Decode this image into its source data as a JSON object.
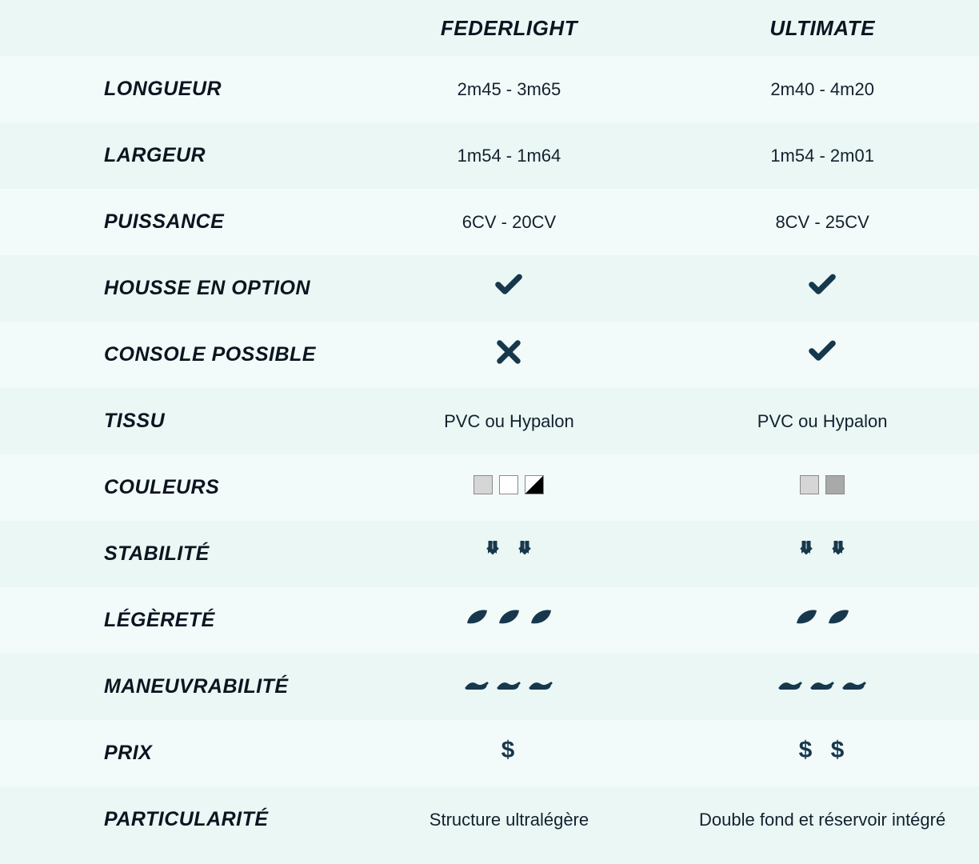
{
  "colors": {
    "bg_even": "#eaf7f5",
    "bg_odd": "#f3fbfa",
    "text_dark": "#0b1520",
    "icon_dark": "#17384c",
    "swatch_grey": "#d6d6d6",
    "swatch_white": "#ffffff",
    "swatch_darkgrey": "#a9a9a9",
    "swatch_border": "#8a8a8a"
  },
  "typography": {
    "label_fontsize": 25,
    "label_weight": 800,
    "label_style": "italic",
    "value_fontsize": 22,
    "header_fontsize": 26
  },
  "header": {
    "col1": "FEDERLIGHT",
    "col2": "ULTIMATE"
  },
  "rows": [
    {
      "key": "longueur",
      "label": "LONGUEUR",
      "type": "text",
      "col1": "2m45 - 3m65",
      "col2": "2m40 - 4m20"
    },
    {
      "key": "largeur",
      "label": "LARGEUR",
      "type": "text",
      "col1": "1m54 - 1m64",
      "col2": "1m54 - 2m01"
    },
    {
      "key": "puissance",
      "label": "PUISSANCE",
      "type": "text",
      "col1": "6CV - 20CV",
      "col2": "8CV - 25CV"
    },
    {
      "key": "housse",
      "label": "HOUSSE EN OPTION",
      "type": "bool",
      "col1": true,
      "col2": true
    },
    {
      "key": "console",
      "label": "CONSOLE POSSIBLE",
      "type": "bool",
      "col1": false,
      "col2": true
    },
    {
      "key": "tissu",
      "label": "TISSU",
      "type": "text",
      "col1": "PVC ou Hypalon",
      "col2": "PVC ou Hypalon"
    },
    {
      "key": "couleurs",
      "label": "COULEURS",
      "type": "swatches",
      "col1": [
        "grey",
        "white",
        "half"
      ],
      "col2": [
        "grey",
        "darkgrey"
      ]
    },
    {
      "key": "stabilite",
      "label": "STABILITÉ",
      "type": "rating",
      "icon": "anchor",
      "col1": 2,
      "col2": 2
    },
    {
      "key": "legerete",
      "label": "LÉGÈRETÉ",
      "type": "rating",
      "icon": "leaf",
      "col1": 3,
      "col2": 2
    },
    {
      "key": "maneuvrabilite",
      "label": "MANEUVRABILITÉ",
      "type": "rating",
      "icon": "wave",
      "col1": 3,
      "col2": 3
    },
    {
      "key": "prix",
      "label": "PRIX",
      "type": "rating",
      "icon": "dollar",
      "col1": 1,
      "col2": 2
    },
    {
      "key": "particularite",
      "label": "PARTICULARITÉ",
      "type": "text",
      "col1": "Structure ultralégère",
      "col2": "Double fond et réservoir intégré"
    }
  ],
  "icons": {
    "check_size": 36,
    "cross_size": 34,
    "rating_icon_size": 30
  }
}
